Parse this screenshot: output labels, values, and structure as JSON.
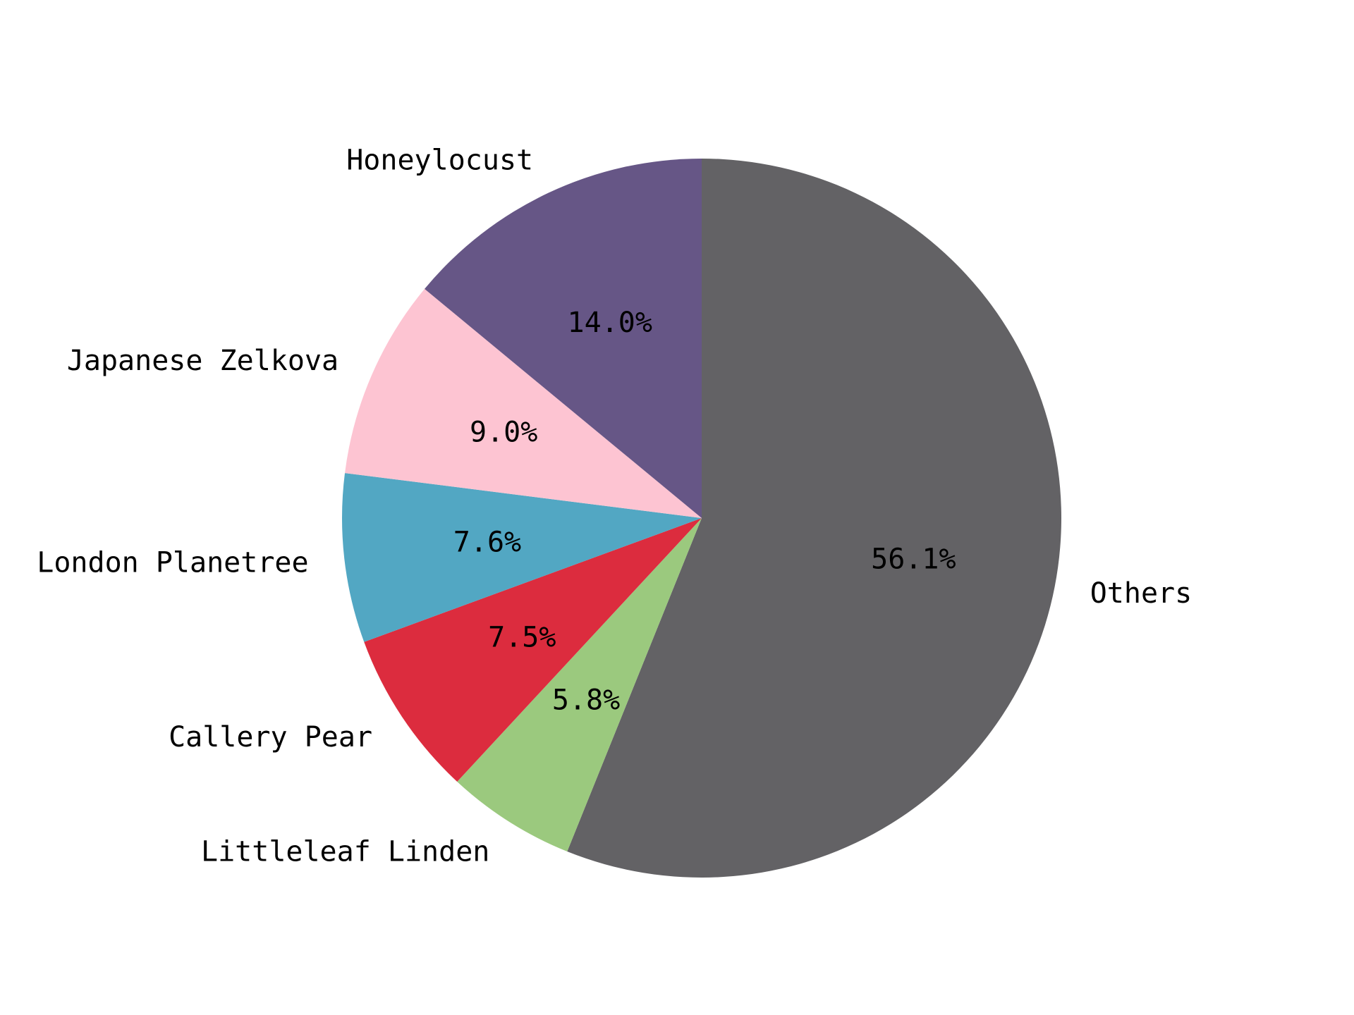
{
  "chart_data": {
    "type": "pie",
    "title": "",
    "start": "top, clockwise",
    "slices": [
      {
        "label": "Others",
        "value": 56.1,
        "pct_label": "56.1%",
        "color": "#636265"
      },
      {
        "label": "Littleleaf Linden",
        "value": 5.8,
        "pct_label": "5.8%",
        "color": "#9bc97e"
      },
      {
        "label": "Callery Pear",
        "value": 7.5,
        "pct_label": "7.5%",
        "color": "#dc2c3e"
      },
      {
        "label": "London Planetree",
        "value": 7.6,
        "pct_label": "7.6%",
        "color": "#52a7c3"
      },
      {
        "label": "Japanese Zelkova",
        "value": 9.0,
        "pct_label": "9.0%",
        "color": "#fdc4d2"
      },
      {
        "label": "Honeylocust",
        "value": 14.0,
        "pct_label": "14.0%",
        "color": "#665686"
      }
    ]
  }
}
